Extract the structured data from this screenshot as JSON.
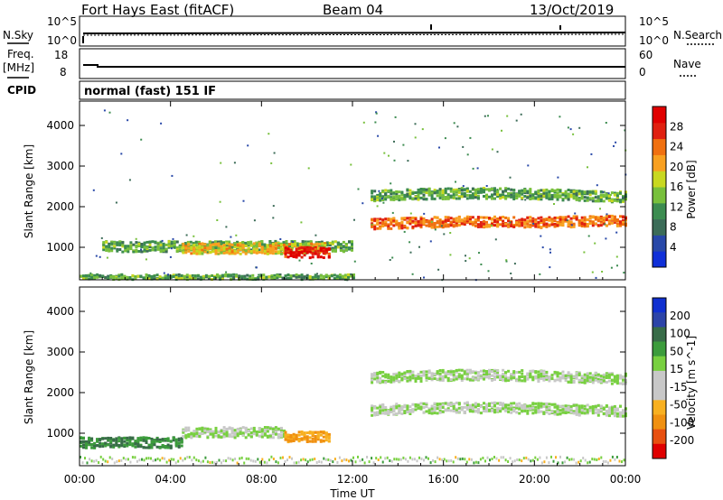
{
  "header": {
    "station": "Fort Hays East (fitACF)",
    "beam": "Beam 04",
    "date": "13/Oct/2019"
  },
  "noise_panel": {
    "left_label": "N.Sky",
    "left_ticks": [
      "10^5",
      "10^0"
    ],
    "right_label": "N.Search",
    "right_ticks": [
      "10^5",
      "10^0"
    ]
  },
  "freq_panel": {
    "left_label_1": "Freq.",
    "left_label_2": "[MHz]",
    "left_ticks": [
      "18",
      "8"
    ],
    "right_label": "Nave",
    "right_ticks": [
      "60",
      "0"
    ]
  },
  "cpid_panel": {
    "label": "CPID",
    "mode": "normal (fast) 151 IF"
  },
  "x_axis": {
    "label": "Time UT",
    "ticks": [
      "00:00",
      "04:00",
      "08:00",
      "12:00",
      "16:00",
      "20:00",
      "00:00"
    ]
  },
  "colors": {
    "power_scale": [
      "#1030d8",
      "#2848a8",
      "#3c6c58",
      "#3c8c50",
      "#78c03c",
      "#c8d820",
      "#f8a020",
      "#f07010",
      "#e02010",
      "#e00000"
    ],
    "velocity_scale": [
      "#1030d0",
      "#2c44a8",
      "#386c48",
      "#3c9c3c",
      "#78d040",
      "#c8c8c8",
      "#c8c8c8",
      "#f8b020",
      "#f09010",
      "#e85010",
      "#e00000"
    ]
  },
  "chart_data": [
    {
      "type": "heatmap",
      "title": "",
      "xlabel": "",
      "ylabel": "Slant Range [km]",
      "xlim": [
        "00:00",
        "24:00"
      ],
      "ylim": [
        200,
        4600
      ],
      "y_ticks": [
        "1000",
        "2000",
        "3000",
        "4000"
      ],
      "colorbar": {
        "label": "Power [dB]",
        "ticks": [
          "4",
          "8",
          "12",
          "16",
          "20",
          "24",
          "28"
        ],
        "range": [
          0,
          30
        ]
      },
      "features": [
        {
          "t_start": 0.0,
          "t_end": 12.0,
          "range_km": 300,
          "level": 12
        },
        {
          "t_start": 1.0,
          "t_end": 12.0,
          "range_km": 1050,
          "level": 12
        },
        {
          "t_start": 4.5,
          "t_end": 10.8,
          "range_km": 1000,
          "level": 18
        },
        {
          "t_start": 9.0,
          "t_end": 11.0,
          "range_km": 900,
          "level": 27
        },
        {
          "t_start": 12.8,
          "t_end": 24.0,
          "range_km": 1600,
          "level": 22
        },
        {
          "t_start": 12.8,
          "t_end": 24.0,
          "range_km": 2300,
          "level": 12
        }
      ]
    },
    {
      "type": "heatmap",
      "title": "",
      "xlabel": "Time UT",
      "ylabel": "Slant Range [km]",
      "xlim": [
        "00:00",
        "24:00"
      ],
      "ylim": [
        200,
        4600
      ],
      "y_ticks": [
        "1000",
        "2000",
        "3000",
        "4000"
      ],
      "colorbar": {
        "label": "Velocity [m s^-1]",
        "ticks": [
          "200",
          "100",
          "50",
          "15",
          "-15",
          "-50",
          "-100",
          "-200"
        ]
      },
      "features": [
        {
          "t_start": 0.0,
          "t_end": 4.5,
          "range_km": 800,
          "velocity": 30
        },
        {
          "t_start": 4.5,
          "t_end": 9.0,
          "range_km": 1050,
          "velocity": 0
        },
        {
          "t_start": 9.0,
          "t_end": 11.0,
          "range_km": 950,
          "velocity": -30
        },
        {
          "t_start": 12.8,
          "t_end": 24.0,
          "range_km": 1600,
          "velocity": 0
        },
        {
          "t_start": 12.8,
          "t_end": 24.0,
          "range_km": 2400,
          "velocity": 0
        }
      ]
    }
  ]
}
